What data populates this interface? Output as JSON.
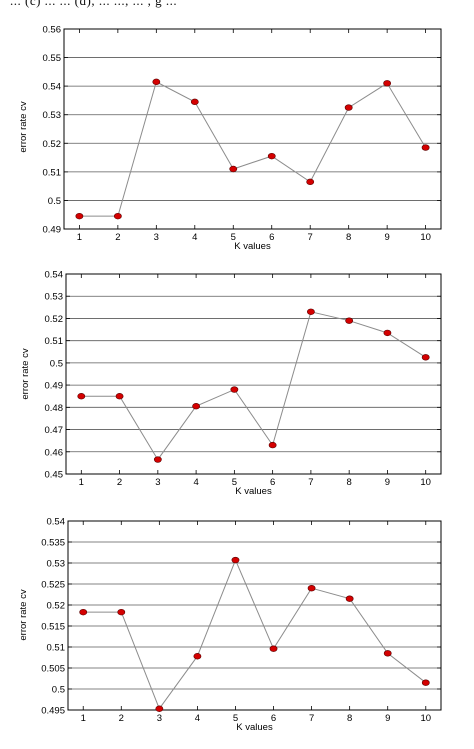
{
  "header_fragment": "... (c) ... ... (d), ... ..., ... , g ...",
  "chart_data": [
    {
      "type": "line",
      "xlabel": "K values",
      "ylabel": "error rate cv",
      "xlim": [
        0.6,
        10.4
      ],
      "ylim": [
        0.49,
        0.56
      ],
      "xticks": [
        1,
        2,
        3,
        4,
        5,
        6,
        7,
        8,
        9,
        10
      ],
      "yticks": [
        0.49,
        0.5,
        0.51,
        0.52,
        0.53,
        0.54,
        0.55,
        0.56
      ],
      "ytick_labels": [
        "0.49",
        "0.5",
        "0.51",
        "0.52",
        "0.53",
        "0.54",
        "0.55",
        "0.56"
      ],
      "grid": "horizontal",
      "line_color": "#8c8c8c",
      "marker_color": "#d40000",
      "x": [
        1,
        2,
        3,
        4,
        5,
        6,
        7,
        8,
        9,
        10
      ],
      "values": [
        0.4945,
        0.4945,
        0.5415,
        0.5345,
        0.511,
        0.5155,
        0.5065,
        0.5325,
        0.541,
        0.5185
      ]
    },
    {
      "type": "line",
      "xlabel": "K values",
      "ylabel": "error rate cv",
      "xlim": [
        0.6,
        10.4
      ],
      "ylim": [
        0.45,
        0.54
      ],
      "xticks": [
        1,
        2,
        3,
        4,
        5,
        6,
        7,
        8,
        9,
        10
      ],
      "yticks": [
        0.45,
        0.46,
        0.47,
        0.48,
        0.49,
        0.5,
        0.51,
        0.52,
        0.53,
        0.54
      ],
      "ytick_labels": [
        "0.45",
        "0.46",
        "0.47",
        "0.48",
        "0.49",
        "0.5",
        "0.51",
        "0.52",
        "0.53",
        "0.54"
      ],
      "grid": "horizontal",
      "line_color": "#8c8c8c",
      "marker_color": "#d40000",
      "x": [
        1,
        2,
        3,
        4,
        5,
        6,
        7,
        8,
        9,
        10
      ],
      "values": [
        0.485,
        0.485,
        0.4565,
        0.4805,
        0.488,
        0.463,
        0.523,
        0.519,
        0.5135,
        0.5025
      ]
    },
    {
      "type": "line",
      "xlabel": "K values",
      "ylabel": "error rate cv",
      "xlim": [
        0.6,
        10.4
      ],
      "ylim": [
        0.495,
        0.54
      ],
      "xticks": [
        1,
        2,
        3,
        4,
        5,
        6,
        7,
        8,
        9,
        10
      ],
      "yticks": [
        0.495,
        0.5,
        0.505,
        0.51,
        0.515,
        0.52,
        0.525,
        0.53,
        0.535,
        0.54
      ],
      "ytick_labels": [
        "0.495",
        "0.5",
        "0.505",
        "0.51",
        "0.515",
        "0.52",
        "0.525",
        "0.53",
        "0.535",
        "0.54"
      ],
      "grid": "horizontal",
      "line_color": "#8c8c8c",
      "marker_color": "#d40000",
      "x": [
        1,
        2,
        3,
        4,
        5,
        6,
        7,
        8,
        9,
        10
      ],
      "values": [
        0.5183,
        0.5183,
        0.4953,
        0.5078,
        0.5307,
        0.5096,
        0.524,
        0.5215,
        0.5085,
        0.5015
      ]
    }
  ]
}
